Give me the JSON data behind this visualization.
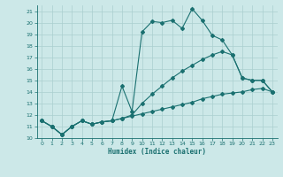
{
  "xlabel": "Humidex (Indice chaleur)",
  "xlim": [
    -0.5,
    23.5
  ],
  "ylim": [
    10,
    21.5
  ],
  "yticks": [
    10,
    11,
    12,
    13,
    14,
    15,
    16,
    17,
    18,
    19,
    20,
    21
  ],
  "xticks": [
    0,
    1,
    2,
    3,
    4,
    5,
    6,
    7,
    8,
    9,
    10,
    11,
    12,
    13,
    14,
    15,
    16,
    17,
    18,
    19,
    20,
    21,
    22,
    23
  ],
  "bg_color": "#cce8e8",
  "grid_color": "#aacfcf",
  "line_color": "#1a7070",
  "line1_x": [
    0,
    1,
    2,
    3,
    4,
    5,
    6,
    7,
    8,
    9,
    10,
    11,
    12,
    13,
    14,
    15,
    16,
    17,
    18,
    19,
    20,
    21,
    22,
    23
  ],
  "line1_y": [
    11.5,
    11.0,
    10.3,
    11.0,
    11.5,
    11.2,
    11.4,
    11.5,
    14.5,
    12.3,
    19.2,
    20.1,
    20.0,
    20.2,
    19.5,
    21.2,
    20.2,
    18.9,
    18.5,
    17.2,
    15.2,
    15.0,
    15.0,
    14.0
  ],
  "line2_x": [
    0,
    1,
    2,
    3,
    4,
    5,
    6,
    7,
    8,
    9,
    10,
    11,
    12,
    13,
    14,
    15,
    16,
    17,
    18,
    19,
    20,
    21,
    22,
    23
  ],
  "line2_y": [
    11.5,
    11.0,
    10.3,
    11.0,
    11.5,
    11.2,
    11.4,
    11.5,
    11.7,
    12.0,
    13.0,
    13.8,
    14.5,
    15.2,
    15.8,
    16.3,
    16.8,
    17.2,
    17.5,
    17.2,
    15.2,
    15.0,
    15.0,
    14.0
  ],
  "line3_x": [
    0,
    1,
    2,
    3,
    4,
    5,
    6,
    7,
    8,
    9,
    10,
    11,
    12,
    13,
    14,
    15,
    16,
    17,
    18,
    19,
    20,
    21,
    22,
    23
  ],
  "line3_y": [
    11.5,
    11.0,
    10.3,
    11.0,
    11.5,
    11.2,
    11.4,
    11.5,
    11.7,
    11.9,
    12.1,
    12.3,
    12.5,
    12.7,
    12.9,
    13.1,
    13.4,
    13.6,
    13.8,
    13.9,
    14.0,
    14.2,
    14.3,
    14.0
  ]
}
